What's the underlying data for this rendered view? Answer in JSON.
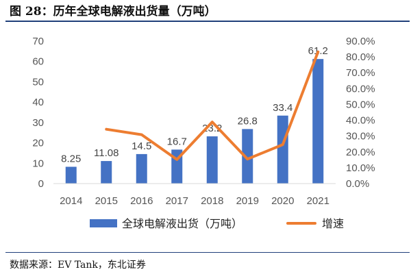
{
  "figure": {
    "title": "图 28：历年全球电解液出货量（万吨）",
    "source": "数据来源：EV Tank，东北证券"
  },
  "colors": {
    "bars": "#4472c4",
    "line": "#ed7d31",
    "title_rule": "#1f3f7a"
  },
  "chart_data": {
    "type": "bar",
    "categories": [
      "2014",
      "2015",
      "2016",
      "2017",
      "2018",
      "2019",
      "2020",
      "2021"
    ],
    "series": [
      {
        "name": "全球电解液出货（万吨）",
        "type": "bar",
        "axis": "left",
        "values": [
          8.25,
          11.08,
          14.5,
          16.7,
          23.2,
          26.8,
          33.4,
          61.2
        ],
        "labels": [
          "8.25",
          "11.08",
          "14.5",
          "16.7",
          "23.2",
          "26.8",
          "33.4",
          "61.2"
        ]
      },
      {
        "name": "增速",
        "type": "line",
        "axis": "right",
        "values": [
          null,
          34.3,
          30.9,
          15.2,
          38.9,
          15.5,
          24.6,
          83.2
        ]
      }
    ],
    "y_left": {
      "min": 0,
      "max": 70,
      "ticks": [
        "0",
        "10",
        "20",
        "30",
        "40",
        "50",
        "60",
        "70"
      ]
    },
    "y_right": {
      "min": 0,
      "max": 90,
      "ticks": [
        "0.0%",
        "10.0%",
        "20.0%",
        "30.0%",
        "40.0%",
        "50.0%",
        "60.0%",
        "70.0%",
        "80.0%",
        "90.0%"
      ]
    },
    "grid": false,
    "legend": "bottom"
  }
}
